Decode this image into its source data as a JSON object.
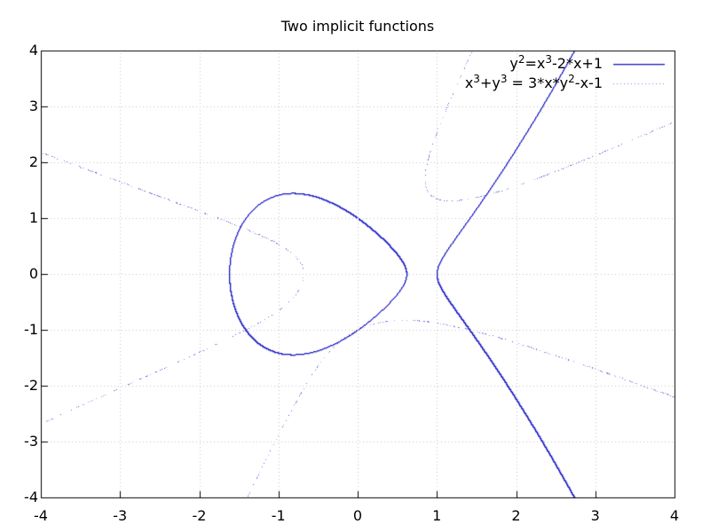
{
  "title": "Two implicit functions",
  "chart_data": {
    "type": "line",
    "subtype": "implicit-contour",
    "title": "Two implicit functions",
    "xlim": [
      -4,
      4
    ],
    "ylim": [
      -4,
      4
    ],
    "xticks": [
      -4,
      -3,
      -2,
      -1,
      0,
      1,
      2,
      3,
      4
    ],
    "yticks": [
      -4,
      -3,
      -2,
      -1,
      0,
      1,
      2,
      3,
      4
    ],
    "grid": true,
    "grid_style": "dotted",
    "legend_position": "top-right-inside",
    "series": [
      {
        "name": "y^2 = x^3 - 2*x + 1",
        "legend_label": "y²=x³-2*x+1",
        "label_segments": [
          {
            "t": "y"
          },
          {
            "sup": "2"
          },
          {
            "t": "=x"
          },
          {
            "sup": "3"
          },
          {
            "t": "-2*x+1"
          }
        ],
        "style": "solid",
        "color": "#1a1ac4",
        "implicit_terms": [
          {
            "c": 1,
            "px": 0,
            "py": 2
          },
          {
            "c": -1,
            "px": 3,
            "py": 0
          },
          {
            "c": 2,
            "px": 1,
            "py": 0
          },
          {
            "c": -1,
            "px": 0,
            "py": 0
          }
        ]
      },
      {
        "name": "x^3 + y^3 = 3*x*y^2 - x - 1",
        "legend_label": "x³+y³ = 3*x*y²-x-1",
        "label_segments": [
          {
            "t": "x"
          },
          {
            "sup": "3"
          },
          {
            "t": "+y"
          },
          {
            "sup": "3"
          },
          {
            "t": " = 3*x*y"
          },
          {
            "sup": "2"
          },
          {
            "t": "-x-1"
          }
        ],
        "style": "dotted",
        "color": "#1a1ac4",
        "implicit_terms": [
          {
            "c": 1,
            "px": 3,
            "py": 0
          },
          {
            "c": 1,
            "px": 0,
            "py": 3
          },
          {
            "c": -3,
            "px": 1,
            "py": 2
          },
          {
            "c": 1,
            "px": 1,
            "py": 0
          },
          {
            "c": 1,
            "px": 0,
            "py": 0
          }
        ]
      }
    ],
    "colors": {
      "grid": "#c3c3c3",
      "axis": "#000000",
      "background": "#ffffff",
      "text": "#000000"
    }
  }
}
